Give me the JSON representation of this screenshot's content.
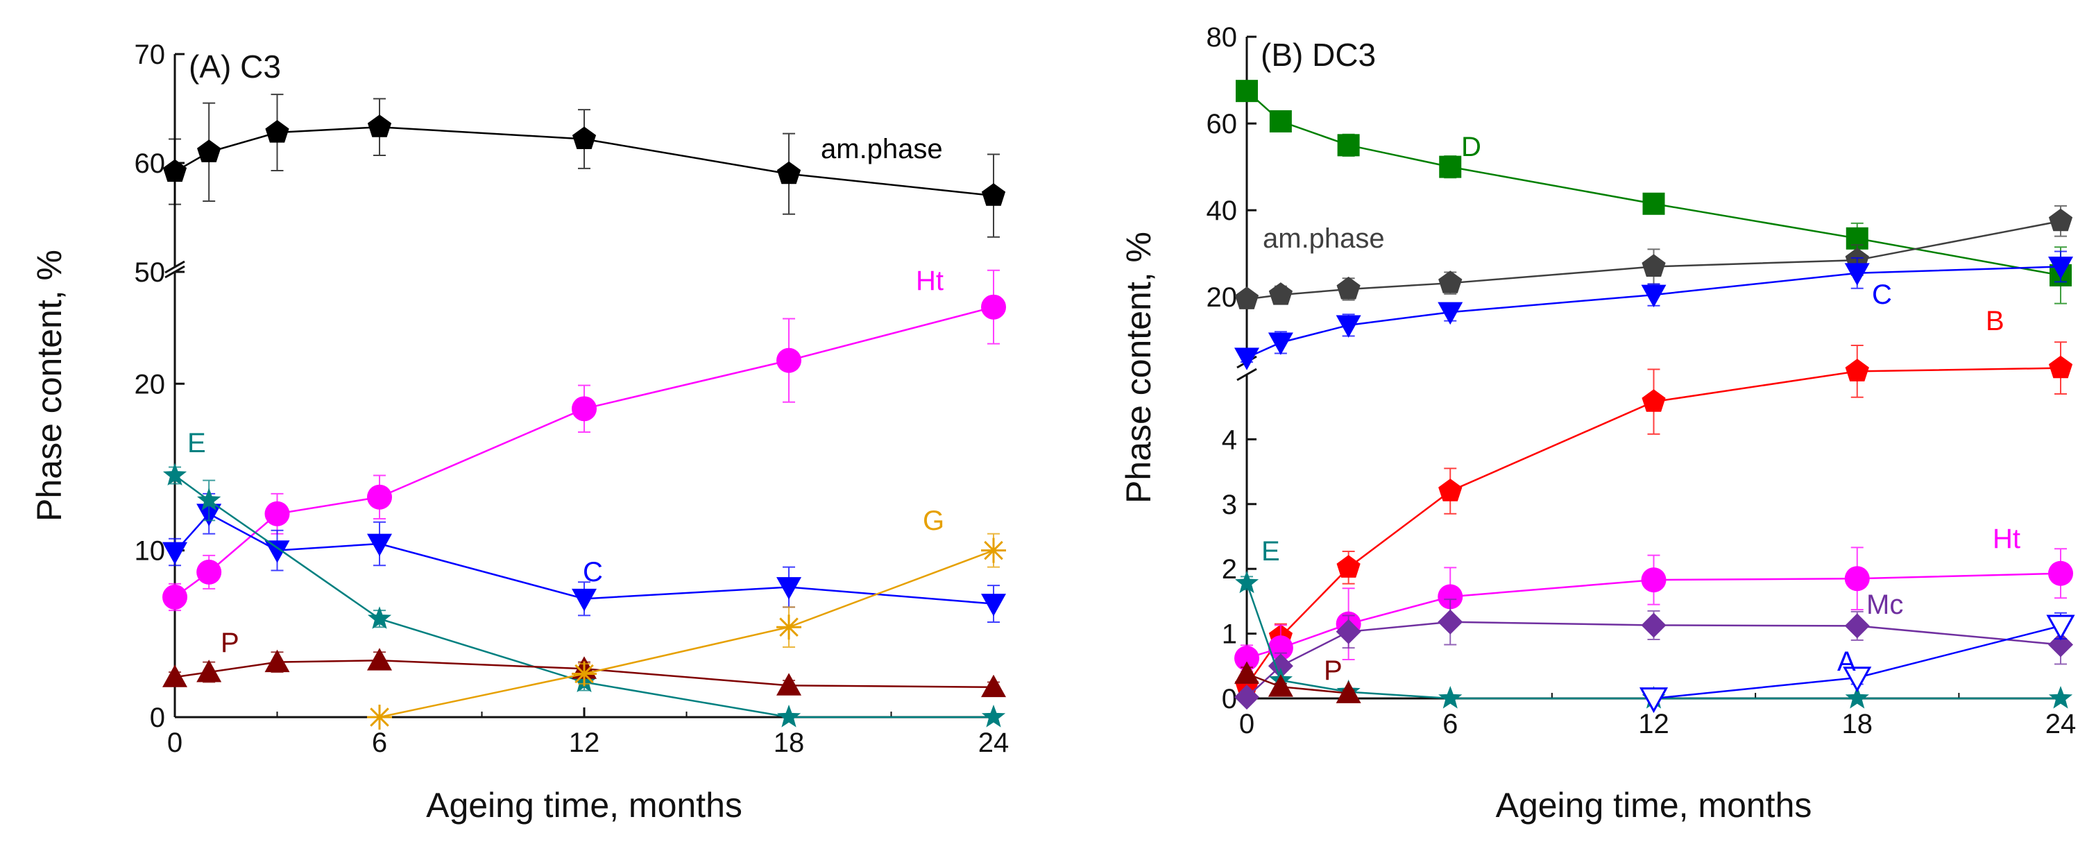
{
  "chart_data": [
    {
      "type": "line",
      "panel": "A",
      "title": "(A)  C3",
      "xlabel": "Ageing time, months",
      "ylabel": "Phase content, %",
      "x_ticks": [
        0,
        6,
        12,
        18,
        24
      ],
      "y_axis_break": true,
      "y_lower": {
        "range": [
          0,
          27
        ],
        "ticks": [
          0,
          10,
          20
        ]
      },
      "y_upper": {
        "range": [
          50,
          70
        ],
        "ticks": [
          50,
          60,
          70
        ]
      },
      "series": [
        {
          "name": "am.phase",
          "label": "am.phase",
          "color": "#000000",
          "marker": "pentagon",
          "segment": "upper",
          "x": [
            0,
            1,
            3,
            6,
            12,
            18,
            24
          ],
          "y": [
            59.2,
            61.0,
            62.8,
            63.3,
            62.2,
            59.0,
            57.0
          ],
          "err": [
            3.0,
            4.5,
            3.5,
            2.6,
            2.7,
            3.7,
            3.8
          ]
        },
        {
          "name": "Ht",
          "label": "Ht",
          "color": "#ff00ff",
          "marker": "circle",
          "segment": "lower",
          "x": [
            0,
            1,
            3,
            6,
            12,
            18,
            24
          ],
          "y": [
            7.2,
            8.7,
            12.2,
            13.2,
            18.5,
            21.4,
            24.6
          ],
          "err": [
            0.8,
            1.0,
            1.2,
            1.3,
            1.4,
            2.5,
            2.2
          ]
        },
        {
          "name": "C",
          "label": "C",
          "color": "#0000ff",
          "marker": "triangle-down",
          "segment": "lower",
          "x": [
            0,
            1,
            3,
            6,
            12,
            18,
            24
          ],
          "y": [
            9.9,
            12.2,
            10.0,
            10.4,
            7.1,
            7.8,
            6.8
          ],
          "err": [
            0.8,
            1.2,
            1.2,
            1.3,
            1.0,
            1.2,
            1.1
          ]
        },
        {
          "name": "E",
          "label": "E",
          "color": "#008080",
          "marker": "star",
          "segment": "lower",
          "x": [
            0,
            1,
            6,
            12,
            18,
            24
          ],
          "y": [
            14.5,
            13.0,
            5.9,
            2.1,
            0.0,
            0.0
          ],
          "err": [
            0.5,
            1.2,
            0.5,
            0.5,
            0,
            0
          ]
        },
        {
          "name": "P",
          "label": "P",
          "color": "#800000",
          "marker": "triangle-up",
          "segment": "lower",
          "x": [
            0,
            1,
            3,
            6,
            12,
            18,
            24
          ],
          "y": [
            2.4,
            2.7,
            3.3,
            3.4,
            2.9,
            1.9,
            1.8
          ],
          "err": [
            0.3,
            0.6,
            0.6,
            0.5,
            0.4,
            0.3,
            0.3
          ]
        },
        {
          "name": "G",
          "label": "G",
          "color": "#e6a000",
          "marker": "asterisk",
          "segment": "lower",
          "x": [
            6,
            12,
            18,
            24
          ],
          "y": [
            0.0,
            2.6,
            5.4,
            10.0
          ],
          "err": [
            0,
            0.6,
            1.2,
            1.0
          ]
        }
      ]
    },
    {
      "type": "line",
      "panel": "B",
      "title": "(B)  DC3",
      "xlabel": "Ageing time, months",
      "ylabel": "Phase content, %",
      "x_ticks": [
        0,
        6,
        12,
        18,
        24
      ],
      "y_axis_break": true,
      "y_lower": {
        "range": [
          0,
          5
        ],
        "ticks": [
          0,
          1,
          2,
          3,
          4
        ]
      },
      "y_upper": {
        "range": [
          5,
          80
        ],
        "ticks": [
          20,
          40,
          60,
          80
        ]
      },
      "series": [
        {
          "name": "D",
          "label": "D",
          "color": "#008000",
          "marker": "square",
          "segment": "upper",
          "x": [
            0,
            1,
            3,
            6,
            12,
            18,
            24
          ],
          "y": [
            67.5,
            60.5,
            55.0,
            50.0,
            41.5,
            33.5,
            25.0
          ],
          "err": [
            2.0,
            1.5,
            2.5,
            2.5,
            1.5,
            3.5,
            6.5
          ]
        },
        {
          "name": "am.phase",
          "label": "am.phase",
          "color": "#404040",
          "marker": "pentagon",
          "segment": "upper",
          "x": [
            0,
            1,
            3,
            6,
            12,
            18,
            24
          ],
          "y": [
            19.5,
            20.5,
            21.8,
            23.2,
            27.0,
            28.5,
            37.5
          ],
          "err": [
            1.5,
            2.0,
            2.5,
            2.5,
            4.0,
            3.5,
            3.5
          ]
        },
        {
          "name": "C",
          "label": "C",
          "color": "#0000ff",
          "marker": "triangle-down",
          "segment": "upper",
          "x": [
            0,
            1,
            3,
            6,
            12,
            18,
            24
          ],
          "y": [
            6.0,
            9.5,
            13.5,
            16.5,
            20.5,
            25.5,
            27.0
          ],
          "err": [
            1.0,
            2.5,
            2.5,
            2.0,
            2.5,
            3.5,
            3.5
          ]
        },
        {
          "name": "B",
          "label": "B",
          "color": "#ff0000",
          "marker": "pentagon",
          "segment": "lower",
          "x": [
            0,
            1,
            3,
            6,
            12,
            18,
            24
          ],
          "y": [
            0.2,
            0.95,
            2.02,
            3.2,
            4.58,
            5.05,
            5.1
          ],
          "err": [
            0.1,
            0.2,
            0.25,
            0.35,
            0.5,
            0.4,
            0.4
          ]
        },
        {
          "name": "Ht",
          "label": "Ht",
          "color": "#ff00ff",
          "marker": "circle",
          "segment": "lower",
          "x": [
            0,
            1,
            3,
            6,
            12,
            18,
            24
          ],
          "y": [
            0.62,
            0.78,
            1.15,
            1.57,
            1.83,
            1.85,
            1.93
          ],
          "err": [
            0.2,
            0.35,
            0.55,
            0.45,
            0.38,
            0.48,
            0.38
          ]
        },
        {
          "name": "Mc",
          "label": "Mc",
          "color": "#7030a0",
          "marker": "diamond",
          "segment": "lower",
          "x": [
            0,
            1,
            3,
            6,
            12,
            18,
            24
          ],
          "y": [
            0.02,
            0.5,
            1.03,
            1.18,
            1.13,
            1.12,
            0.83
          ],
          "err": [
            0.05,
            0.2,
            0.25,
            0.35,
            0.22,
            0.22,
            0.3
          ]
        },
        {
          "name": "E",
          "label": "E",
          "color": "#008080",
          "marker": "star",
          "segment": "lower",
          "x": [
            0,
            1,
            3,
            6,
            12,
            18,
            24
          ],
          "y": [
            1.78,
            0.28,
            0.1,
            0.0,
            0.0,
            0.0,
            0.0
          ],
          "err": [
            0.1,
            0.05,
            0.05,
            0,
            0,
            0,
            0
          ]
        },
        {
          "name": "P",
          "label": "P",
          "color": "#800000",
          "marker": "triangle-up",
          "segment": "lower",
          "x": [
            0,
            1,
            3
          ],
          "y": [
            0.38,
            0.18,
            0.08
          ],
          "err": [
            0.1,
            0.05,
            0.05
          ]
        },
        {
          "name": "A",
          "label": "A",
          "color": "#0000ff",
          "marker": "triangle-down-open",
          "segment": "lower",
          "x": [
            12,
            18,
            24
          ],
          "y": [
            0.0,
            0.32,
            1.12
          ],
          "err": [
            0,
            0.1,
            0.2
          ]
        }
      ]
    }
  ]
}
